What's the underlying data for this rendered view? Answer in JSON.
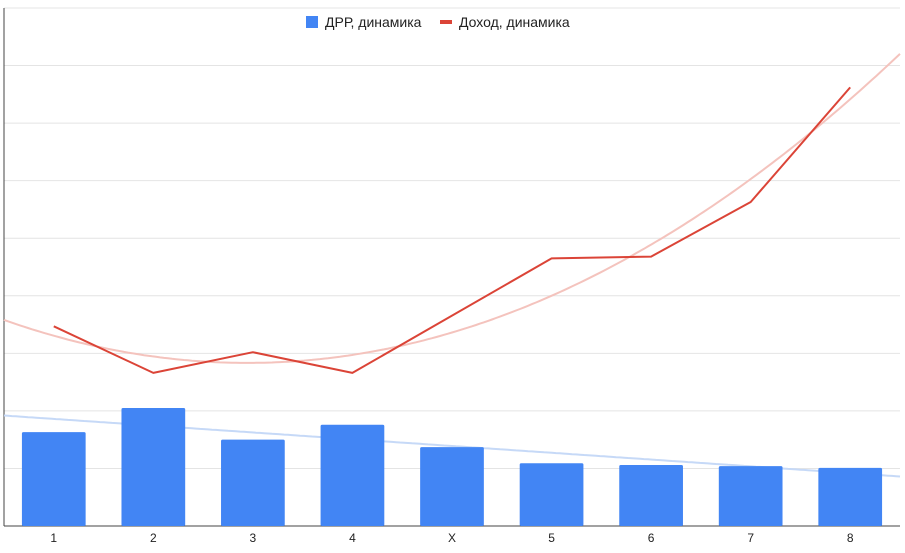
{
  "chart_data": {
    "type": "bar",
    "categories": [
      "1",
      "2",
      "3",
      "4",
      "X",
      "5",
      "6",
      "7",
      "8"
    ],
    "series": [
      {
        "name": "ДРР, динамика",
        "type": "bar",
        "color": "#4285f4",
        "values": [
          1.63,
          2.05,
          1.5,
          1.76,
          1.37,
          1.09,
          1.06,
          1.04,
          1.01
        ]
      },
      {
        "name": "Доход, динамика",
        "type": "line",
        "color": "#db4437",
        "values": [
          3.47,
          2.66,
          3.02,
          2.66,
          null,
          4.65,
          4.68,
          5.63,
          7.62
        ]
      }
    ],
    "trendlines": [
      {
        "series": "ДРР, динамика",
        "kind": "linear",
        "color": "#c6d9f7"
      },
      {
        "series": "Доход, динамика",
        "kind": "polynomial",
        "color": "#f4c3bd"
      }
    ],
    "ylim": [
      0,
      9
    ],
    "grid": true,
    "legend": "top"
  }
}
